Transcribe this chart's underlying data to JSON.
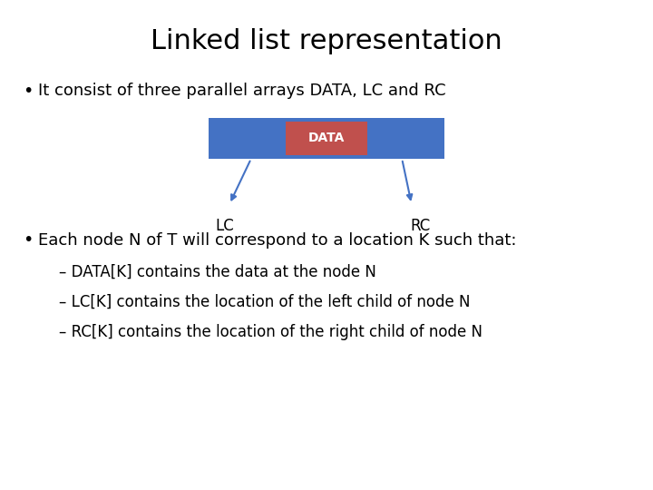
{
  "title": "Linked list representation",
  "title_fontsize": 22,
  "title_color": "#000000",
  "bg_color": "#ffffff",
  "bullet1": "It consist of three parallel arrays DATA, LC and RC",
  "bullet2": "Each node N of T will correspond to a location K such that:",
  "sub1": "DATA[K] contains the data at the node N",
  "sub2": "LC[K] contains the location of the left child of node N",
  "sub3": "RC[K] contains the location of the right child of node N",
  "bullet_fontsize": 13,
  "sub_fontsize": 12,
  "box_color": "#4472C4",
  "center_box_color": "#C0504D",
  "box_label": "DATA",
  "box_label_color": "#ffffff",
  "lc_label": "LC",
  "rc_label": "RC",
  "arrow_color": "#4472C4",
  "label_fontsize": 12,
  "font_family": "DejaVu Sans"
}
